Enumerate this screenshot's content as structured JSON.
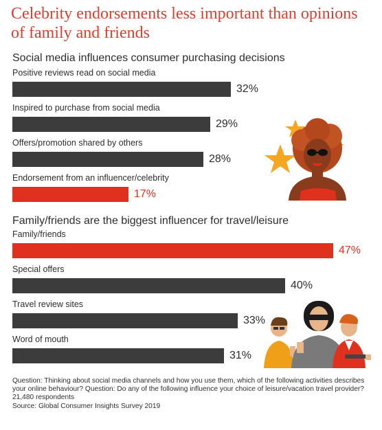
{
  "title": "Celebrity endorsements less important than opinions of family and friends",
  "colors": {
    "dark": "#3c3c3c",
    "accent": "#e0301e",
    "title": "#d93f2b",
    "star": "#f5a623"
  },
  "chart_data": [
    {
      "type": "bar",
      "orientation": "horizontal",
      "title": "Social media influences consumer purchasing decisions",
      "categories": [
        "Positive reviews read on social media",
        "Inspired to purchase from social media",
        "Offers/promotion shared by others",
        "Endorsement from an influencer/celebrity"
      ],
      "values": [
        32,
        29,
        28,
        17
      ],
      "labels": [
        "32%",
        "29%",
        "28%",
        "17%"
      ],
      "highlight": [
        false,
        false,
        false,
        true
      ],
      "unit": "%"
    },
    {
      "type": "bar",
      "orientation": "horizontal",
      "title": "Family/friends are the biggest influencer for travel/leisure",
      "categories": [
        "Family/friends",
        "Special offers",
        "Travel review sites",
        "Word of mouth"
      ],
      "values": [
        47,
        40,
        33,
        31
      ],
      "labels": [
        "47%",
        "40%",
        "33%",
        "31%"
      ],
      "highlight": [
        true,
        false,
        false,
        false
      ],
      "unit": "%"
    }
  ],
  "footnote": {
    "question": "Question: Thinking about social media channels and how you use them, which of the following activities describes your online behaviour? Question: Do any of the following influence your choice of leisure/vacation travel provider?",
    "respondents": "21,480 respondents",
    "source": "Source: Global Consumer Insights Survey 2019"
  },
  "illustrations": {
    "top": "celebrity-with-stars-icon",
    "bottom": "family-friends-group-icon"
  }
}
